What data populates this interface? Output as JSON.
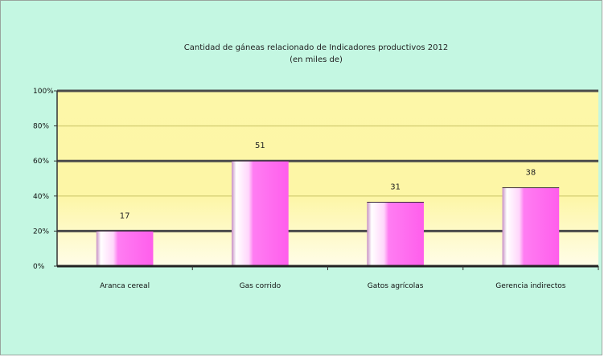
{
  "chart_data": {
    "type": "bar",
    "title": "Cantidad de gáneas relacionado de Indicadores productivos 2012",
    "subtitle": "(en miles de)",
    "categories": [
      "Aranca cereal",
      "Gas corrido",
      "Gatos agrícolas",
      "Gerencia indirectos"
    ],
    "values": [
      17,
      51,
      31,
      38
    ],
    "data_labels": [
      "17",
      "51",
      "31",
      "38"
    ],
    "y_tick_labels": [
      "0%",
      "20%",
      "40%",
      "60%",
      "80%",
      "100%"
    ],
    "y_ticks": [
      0,
      17,
      34,
      51,
      68,
      85
    ],
    "ylim": [
      0,
      85
    ],
    "grid": true,
    "colors": {
      "plot_background_top": "#fdf7a8",
      "plot_background_bottom": "#fffde8",
      "chart_background": "#c4f7e2",
      "bar_light": "#ffffff",
      "bar_main": "#ff6bf0",
      "bar_side": "#c47ac0",
      "grid": "#555555"
    }
  }
}
